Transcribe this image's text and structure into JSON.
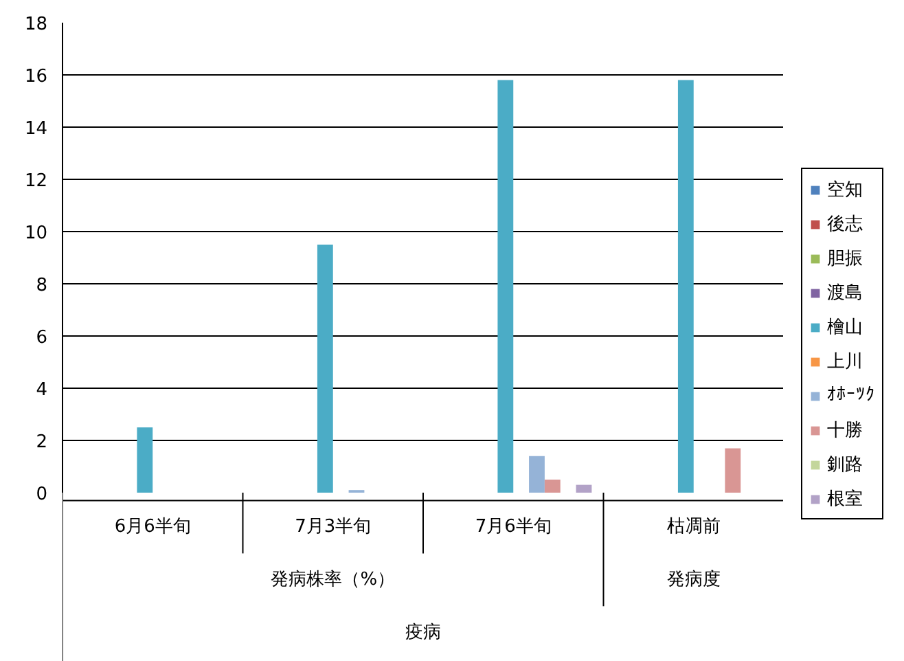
{
  "chart_data": {
    "type": "bar",
    "categories": [
      "6月6半旬",
      "7月3半旬",
      "7月6半旬",
      "枯凋前"
    ],
    "series": [
      {
        "name": "空知",
        "color": "#4f81bd",
        "values": [
          null,
          null,
          null,
          null
        ]
      },
      {
        "name": "後志",
        "color": "#c0504d",
        "values": [
          null,
          null,
          null,
          null
        ]
      },
      {
        "name": "胆振",
        "color": "#9bbb59",
        "values": [
          null,
          null,
          null,
          null
        ]
      },
      {
        "name": "渡島",
        "color": "#8064a2",
        "values": [
          null,
          null,
          null,
          null
        ]
      },
      {
        "name": "檜山",
        "color": "#4bacc6",
        "values": [
          2.5,
          9.5,
          15.8,
          15.8
        ]
      },
      {
        "name": "上川",
        "color": "#f79646",
        "values": [
          null,
          null,
          null,
          null
        ]
      },
      {
        "name": "ｵﾎｰﾂｸ",
        "color": "#95b3d7",
        "values": [
          null,
          0.1,
          1.4,
          null
        ]
      },
      {
        "name": "十勝",
        "color": "#d99694",
        "values": [
          null,
          null,
          0.5,
          1.7
        ]
      },
      {
        "name": "釧路",
        "color": "#c3d69b",
        "values": [
          null,
          null,
          null,
          null
        ]
      },
      {
        "name": "根室",
        "color": "#b2a2c7",
        "values": [
          null,
          null,
          0.3,
          null
        ]
      }
    ],
    "annotations": [
      "発病株率（%）",
      "発病度",
      "疫病"
    ],
    "ylim": [
      0,
      18
    ],
    "yticks": [
      0,
      2,
      4,
      6,
      8,
      10,
      12,
      14,
      16,
      18
    ],
    "grid": "y",
    "legend": "right"
  }
}
